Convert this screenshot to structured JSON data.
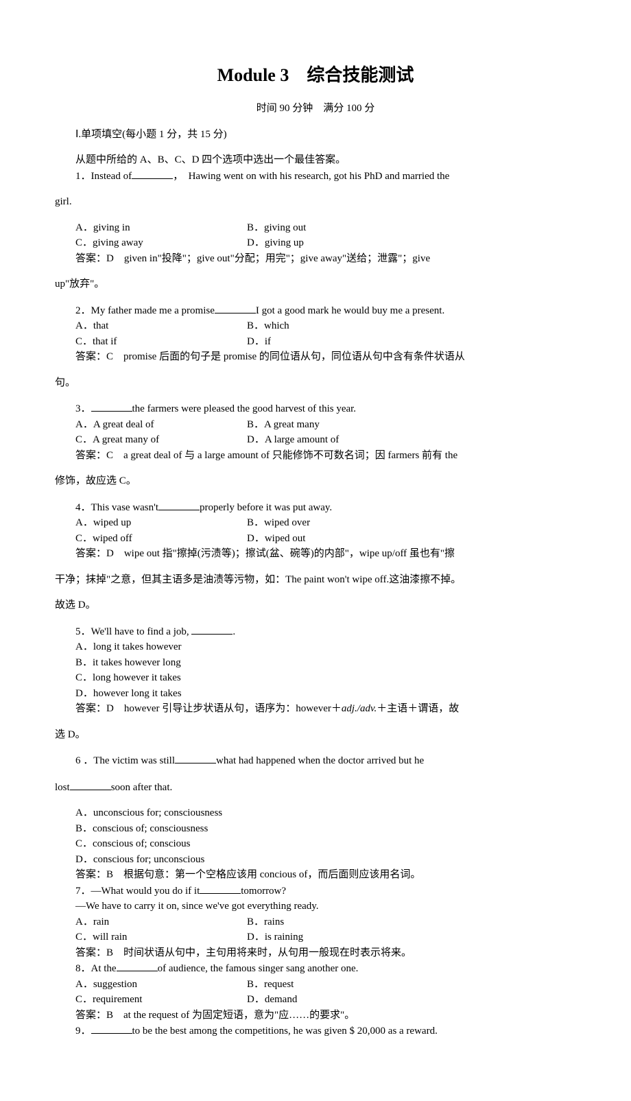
{
  "title": "Module 3　综合技能测试",
  "subtitle": "时间 90 分钟　满分 100 分",
  "section1_head": "Ⅰ.单项填空(每小题 1 分，共 15 分)",
  "section1_instr": "从题中所给的 A、B、C、D 四个选项中选出一个最佳答案。",
  "q1": {
    "stem_a": "1．Instead of",
    "stem_b": "，　Hawing went on with his research, got his PhD and married the",
    "stem_c": "girl.",
    "optA": "A．giving in",
    "optB": "B．giving out",
    "optC": "C．giving away",
    "optD": "D．giving up",
    "ans_a": "答案：D　given in\"投降\"；give out\"分配；用完\"；give away\"送给；泄露\"；give",
    "ans_b": "up\"放弃\"。"
  },
  "q2": {
    "stem_a": "2．My father made me a promise",
    "stem_b": "I got a good mark he would buy me a present.",
    "optA": "A．that",
    "optB": "B．which",
    "optC": "C．that if",
    "optD": "D．if",
    "ans_a": "答案：C　promise 后面的句子是 promise 的同位语从句，同位语从句中含有条件状语从",
    "ans_b": "句。"
  },
  "q3": {
    "stem_a": "3．",
    "stem_b": "the farmers were pleased the good harvest of this year.",
    "optA": "A．A great deal of",
    "optB": "B．A great many",
    "optC": "C．A great many of",
    "optD": "D．A large amount of",
    "ans_a": "答案：C　a great deal of 与 a large amount of 只能修饰不可数名词；因 farmers 前有 the",
    "ans_b": "修饰，故应选 C。"
  },
  "q4": {
    "stem_a": "4．This vase wasn't",
    "stem_b": "properly before it was put away.",
    "optA": "A．wiped up",
    "optB": "B．wiped over",
    "optC": "C．wiped off",
    "optD": "D．wiped out",
    "ans_a": "答案：D　wipe out 指\"擦掉(污渍等)；擦试(盆、碗等)的内部\"，wipe up/off 虽也有\"擦",
    "ans_b": "干净；抹掉\"之意，但其主语多是油渍等污物，如：The paint won't wipe off.这油漆擦不掉。",
    "ans_c": "故选 D。"
  },
  "q5": {
    "stem_a": "5．We'll have to find a job, ",
    "stem_b": ".",
    "optA": "A．long it takes however",
    "optB": "B．it takes however long",
    "optC": "C．long however it takes",
    "optD": "D．however long it takes",
    "ans_a": "答案：D　however 引导让步状语从句，语序为：however＋",
    "ans_ital": "adj./adv.",
    "ans_b2": "＋主语＋谓语，故",
    "ans_b": "选 D。"
  },
  "q6": {
    "stem_a": "6 ．The  victim  was  still",
    "stem_b": "what  had  happened  when  the  doctor  arrived  but  he",
    "stem_c": "lost",
    "stem_d": "soon after that.",
    "optA": "A．unconscious for; consciousness",
    "optB": "B．conscious of; consciousness",
    "optC": "C．conscious of; conscious",
    "optD": "D．conscious for; unconscious",
    "ans": "答案：B　根据句意：第一个空格应该用 concious of，而后面则应该用名词。"
  },
  "q7": {
    "stem_a": "7．—What would you do if it",
    "stem_b": "tomorrow?",
    "line2": "—We have to carry it on, since we've got everything ready.",
    "optA": "A．rain",
    "optB": "B．rains",
    "optC": "C．will rain",
    "optD": "D．is raining",
    "ans": "答案：B　时间状语从句中，主句用将来时，从句用一般现在时表示将来。"
  },
  "q8": {
    "stem_a": "8．At the",
    "stem_b": "of audience, the famous singer sang another one.",
    "optA": "A．suggestion",
    "optB": "B．request",
    "optC": "C．requirement",
    "optD": "D．demand",
    "ans": "答案：B　at the request of 为固定短语，意为\"应……的要求\"。"
  },
  "q9": {
    "stem_a": "9．",
    "stem_b": "to be the best among the competitions, he was given $ 20,000 as a reward."
  }
}
